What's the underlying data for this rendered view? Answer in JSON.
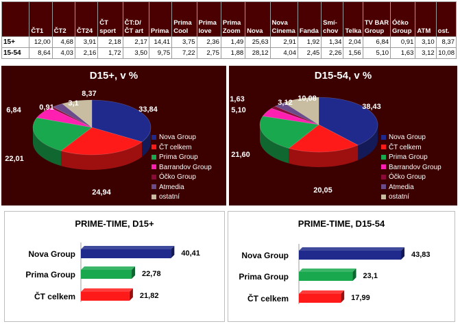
{
  "table": {
    "headers": [
      "",
      "ČT1",
      "ČT2",
      "ČT24",
      "ČT sport",
      "ČT:D/ ČT art",
      "Prima",
      "Prima Cool",
      "Prima love",
      "Prima Zoom",
      "Nova",
      "Nova Cinema",
      "Fanda",
      "Smí-chov",
      "Telka",
      "TV BAR Group",
      "Óčko Group",
      "ATM",
      "ost."
    ],
    "rows": [
      [
        "15+",
        "12,00",
        "4,68",
        "3,91",
        "2,18",
        "2,17",
        "14,41",
        "3,75",
        "2,36",
        "1,49",
        "25,63",
        "2,91",
        "1,92",
        "1,34",
        "2,04",
        "6,84",
        "0,91",
        "3,10",
        "8,37"
      ],
      [
        "15-54",
        "8,64",
        "4,03",
        "2,16",
        "1,72",
        "3,50",
        "9,75",
        "7,22",
        "2,75",
        "1,88",
        "28,12",
        "4,04",
        "2,45",
        "2,26",
        "1,56",
        "5,10",
        "1,63",
        "3,12",
        "10,08"
      ]
    ]
  },
  "chart_data": [
    {
      "type": "pie",
      "title": "D15+, v %",
      "labels": [
        "Nova Group",
        "ČT celkem",
        "Prima Group",
        "Barrandov Group",
        "Óčko Group",
        "Atmedia",
        "ostatní"
      ],
      "values": [
        33.84,
        24.94,
        22.01,
        6.84,
        0.91,
        3.1,
        8.37
      ],
      "value_labels": [
        "33,84",
        "24,94",
        "22,01",
        "6,84",
        "0,91",
        "3,1",
        "8,37"
      ],
      "colors": [
        "#1f2a8c",
        "#ff1a1a",
        "#19a84e",
        "#ff1fb0",
        "#8a0a3a",
        "#6a4c8a",
        "#c9bda1"
      ],
      "legend_position": "right"
    },
    {
      "type": "pie",
      "title": "D15-54, v %",
      "labels": [
        "Nova Group",
        "ČT celkem",
        "Prima Group",
        "Barrandov Group",
        "Óčko Group",
        "Atmedia",
        "ostatní"
      ],
      "values": [
        38.43,
        20.05,
        21.6,
        5.1,
        1.63,
        3.12,
        10.08
      ],
      "value_labels": [
        "38,43",
        "20,05",
        "21,60",
        "5,10",
        "1,63",
        "3,12",
        "10,08"
      ],
      "colors": [
        "#1f2a8c",
        "#ff1a1a",
        "#19a84e",
        "#ff1fb0",
        "#8a0a3a",
        "#6a4c8a",
        "#c9bda1"
      ],
      "legend_position": "right"
    },
    {
      "type": "bar",
      "orientation": "horizontal",
      "title": "PRIME-TIME, D15+",
      "categories": [
        "Nova Group",
        "Prima Group",
        "ČT celkem"
      ],
      "values": [
        40.41,
        22.78,
        21.82
      ],
      "value_labels": [
        "40,41",
        "22,78",
        "21,82"
      ],
      "colors": [
        "#1f2a8c",
        "#19a84e",
        "#ff1a1a"
      ],
      "xlim": [
        0,
        50
      ]
    },
    {
      "type": "bar",
      "orientation": "horizontal",
      "title": "PRIME-TIME, D15-54",
      "categories": [
        "Nova Group",
        "Prima Group",
        "ČT celkem"
      ],
      "values": [
        43.83,
        23.1,
        17.99
      ],
      "value_labels": [
        "43,83",
        "23,1",
        "17,99"
      ],
      "colors": [
        "#1f2a8c",
        "#19a84e",
        "#ff1a1a"
      ],
      "xlim": [
        0,
        50
      ]
    }
  ]
}
